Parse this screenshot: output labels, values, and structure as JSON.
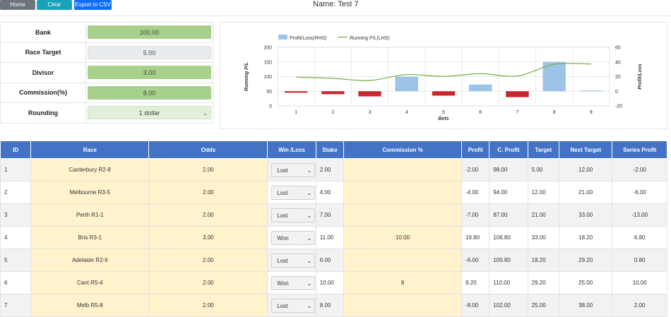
{
  "toolbar": {
    "home_label": "Home",
    "clear_label": "Clear",
    "csv_label": "Export to CSV"
  },
  "page": {
    "title": "Name: Test 7"
  },
  "settings": [
    {
      "label": "Bank",
      "value": "100.00",
      "style": "green"
    },
    {
      "label": "Race Target",
      "value": "5.00",
      "style": "grey"
    },
    {
      "label": "Divisor",
      "value": "3.00",
      "style": "green"
    },
    {
      "label": "Commission(%)",
      "value": "8.00",
      "style": "green"
    },
    {
      "label": "Rounding",
      "value": "1 dollar",
      "style": "select"
    }
  ],
  "colors": {
    "header_blue": "#4472c4",
    "bar_pos": "#9dc3e6",
    "bar_neg": "#c9252c",
    "line": "#70ad47",
    "input_green": "#a8d08d",
    "race_yellow": "#fff2cc"
  },
  "chart_data": {
    "type": "bar",
    "legend": [
      "Profit/Loss(RHS)",
      "Running P/L(LHS)"
    ],
    "legend_position": "top",
    "xlabel": "Bets",
    "ylabel_left": "Running P/L",
    "ylabel_right": "Profit/Loss",
    "categories": [
      "1",
      "2",
      "3",
      "4",
      "5",
      "6",
      "7",
      "8",
      "9"
    ],
    "left_ticks": [
      "200",
      "150",
      "100",
      "50",
      "0"
    ],
    "right_ticks": [
      "60",
      "40",
      "20",
      "0",
      "-20"
    ],
    "ylim_left": [
      0,
      200
    ],
    "ylim_right": [
      -20,
      60
    ],
    "grid": true,
    "series": [
      {
        "name": "Profit/Loss(RHS)",
        "type": "bar",
        "axis": "right",
        "values": [
          -2,
          -4,
          -7,
          19.8,
          -6,
          9.2,
          -8,
          40,
          1
        ]
      },
      {
        "name": "Running P/L(LHS)",
        "type": "line",
        "axis": "left",
        "values": [
          98,
          94,
          87,
          106.8,
          100.8,
          110,
          102,
          142,
          143
        ]
      }
    ]
  },
  "table": {
    "headers": [
      "ID",
      "Race",
      "Odds",
      "Win /Loss",
      "Stake",
      "Commission %",
      "Profit",
      "C. Profit",
      "Target",
      "Next Target",
      "Series Profit"
    ],
    "rows": [
      {
        "id": "1",
        "race": "Canterbury R2-8",
        "odds": "2.00",
        "wl": "Lost",
        "stake": "2.00",
        "commission": "",
        "profit": "-2.00",
        "cprofit": "98.00",
        "target": "5.00",
        "next": "12.00",
        "series": "-2.00"
      },
      {
        "id": "2",
        "race": "Melbourne R3-5",
        "odds": "2.00",
        "wl": "Lost",
        "stake": "4.00",
        "commission": "",
        "profit": "-4.00",
        "cprofit": "94.00",
        "target": "12.00",
        "next": "21.00",
        "series": "-6.00"
      },
      {
        "id": "3",
        "race": "Perth R1-1",
        "odds": "2.00",
        "wl": "Lost",
        "stake": "7.00",
        "commission": "",
        "profit": "-7.00",
        "cprofit": "87.00",
        "target": "21.00",
        "next": "33.00",
        "series": "-13.00"
      },
      {
        "id": "4",
        "race": "Bris R3-1",
        "odds": "3.00",
        "wl": "Won",
        "stake": "11.00",
        "commission": "10.00",
        "profit": "19.80",
        "cprofit": "106.80",
        "target": "33.00",
        "next": "18.20",
        "series": "6.80"
      },
      {
        "id": "5",
        "race": "Adelaide R2-6",
        "odds": "2.00",
        "wl": "Lost",
        "stake": "6.00",
        "commission": "",
        "profit": "-6.00",
        "cprofit": "100.80",
        "target": "18.20",
        "next": "29.20",
        "series": "0.80"
      },
      {
        "id": "6",
        "race": "Cant R5-4",
        "odds": "2.00",
        "wl": "Won",
        "stake": "10.00",
        "commission": "8",
        "profit": "9.20",
        "cprofit": "110.00",
        "target": "29.20",
        "next": "25.00",
        "series": "10.00"
      },
      {
        "id": "7",
        "race": "Melb R5-8",
        "odds": "2.00",
        "wl": "Lost",
        "stake": "8.00",
        "commission": "",
        "profit": "-8.00",
        "cprofit": "102.00",
        "target": "25.00",
        "next": "38.00",
        "series": "2.00"
      }
    ]
  }
}
